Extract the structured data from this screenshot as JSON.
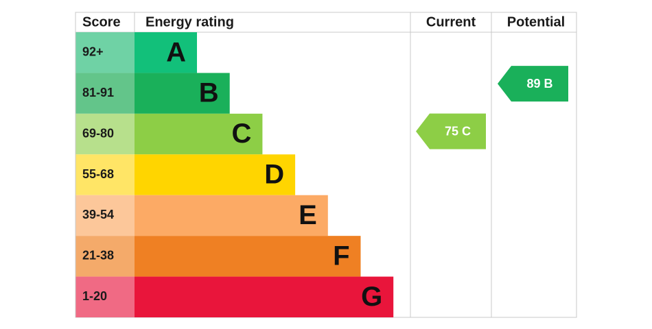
{
  "header": {
    "score": "Score",
    "rating": "Energy rating",
    "current": "Current",
    "potential": "Potential"
  },
  "bands": [
    {
      "score": "92+",
      "letter": "A",
      "color": "#12c07a",
      "score_color": "#6fd2a5"
    },
    {
      "score": "81-91",
      "letter": "B",
      "color": "#1ab05a",
      "score_color": "#63c58a"
    },
    {
      "score": "69-80",
      "letter": "C",
      "color": "#8dce46",
      "score_color": "#b7e08c"
    },
    {
      "score": "55-68",
      "letter": "D",
      "color": "#ffd500",
      "score_color": "#ffe566"
    },
    {
      "score": "39-54",
      "letter": "E",
      "color": "#fcaa65",
      "score_color": "#fcc79a"
    },
    {
      "score": "21-38",
      "letter": "F",
      "color": "#ef8023",
      "score_color": "#f4aa6a"
    },
    {
      "score": "1-20",
      "letter": "G",
      "color": "#e9153b",
      "score_color": "#f06a84"
    }
  ],
  "current": {
    "label": "75 C",
    "color": "#8dce46"
  },
  "potential": {
    "label": "89 B",
    "color": "#1ab05a"
  }
}
